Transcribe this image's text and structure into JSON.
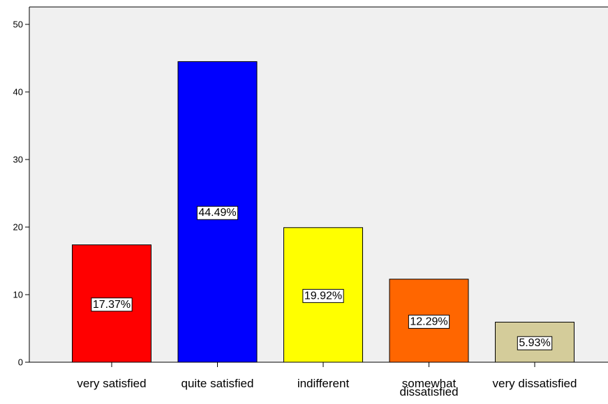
{
  "chart_data": {
    "type": "bar",
    "categories": [
      [
        "very satisfied"
      ],
      [
        "quite satisfied"
      ],
      [
        "indifferent"
      ],
      [
        "somewhat",
        "dissatisfied"
      ],
      [
        "very dissatisfied"
      ]
    ],
    "values": [
      17.37,
      44.49,
      19.92,
      12.29,
      5.93
    ],
    "data_labels": [
      "17.37%",
      "44.49%",
      "19.92%",
      "12.29%",
      "5.93%"
    ],
    "colors": [
      "#ff0000",
      "#0000ff",
      "#ffff00",
      "#ff6600",
      "#d4cc9a"
    ],
    "title": "",
    "xlabel": "",
    "ylabel": "",
    "ylim": [
      0,
      50
    ],
    "yticks": [
      0,
      10,
      20,
      30,
      40,
      50
    ],
    "plot_background": "#f0f0f0",
    "grid": false,
    "legend": "none"
  }
}
